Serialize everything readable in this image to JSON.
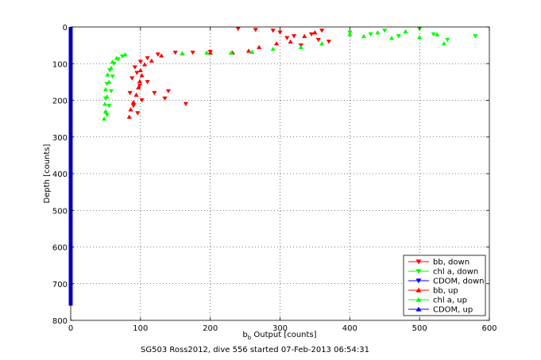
{
  "chart_data": {
    "type": "scatter",
    "xlabel_main": "b",
    "xlabel_sub": "b",
    "xlabel_rest": " Output [counts]",
    "ylabel": "Depth [counts]",
    "footer": "SG503 Ross2012, dive 556 started 07-Feb-2013 06:54:31",
    "xlim": [
      0,
      600
    ],
    "ylim": [
      0,
      800
    ],
    "y_reversed": true,
    "grid": true,
    "legend_position": "bottom-right",
    "xticks": [
      "0",
      "100",
      "200",
      "300",
      "400",
      "500",
      "600"
    ],
    "yticks": [
      "0",
      "100",
      "200",
      "300",
      "400",
      "500",
      "600",
      "700",
      "800"
    ],
    "colors": {
      "red": "#ff0000",
      "green": "#00ff00",
      "blue": "#0000ff"
    },
    "series": [
      {
        "name": "bb, down",
        "color": "#ff0000",
        "marker": "triangle-down",
        "points": [
          [
            92,
            110
          ],
          [
            95,
            125
          ],
          [
            88,
            140
          ],
          [
            99,
            160
          ],
          [
            85,
            180
          ],
          [
            102,
            200
          ],
          [
            90,
            215
          ],
          [
            96,
            235
          ],
          [
            110,
            150
          ],
          [
            120,
            180
          ],
          [
            135,
            195
          ],
          [
            140,
            175
          ],
          [
            165,
            210
          ],
          [
            100,
            95
          ],
          [
            110,
            85
          ],
          [
            125,
            75
          ],
          [
            150,
            70
          ],
          [
            175,
            70
          ],
          [
            200,
            68
          ],
          [
            240,
            5
          ],
          [
            265,
            8
          ],
          [
            290,
            10
          ],
          [
            300,
            15
          ],
          [
            310,
            30
          ],
          [
            320,
            25
          ],
          [
            330,
            50
          ],
          [
            345,
            20
          ],
          [
            355,
            35
          ],
          [
            360,
            10
          ],
          [
            370,
            40
          ]
        ]
      },
      {
        "name": "chl a, down",
        "color": "#00ff00",
        "marker": "triangle-down",
        "points": [
          [
            52,
            240
          ],
          [
            55,
            215
          ],
          [
            50,
            195
          ],
          [
            58,
            175
          ],
          [
            52,
            155
          ],
          [
            60,
            135
          ],
          [
            56,
            118
          ],
          [
            62,
            100
          ],
          [
            68,
            88
          ],
          [
            74,
            80
          ],
          [
            400,
            15
          ],
          [
            430,
            20
          ],
          [
            450,
            10
          ],
          [
            470,
            25
          ],
          [
            500,
            5
          ],
          [
            520,
            20
          ],
          [
            540,
            35
          ],
          [
            580,
            25
          ]
        ]
      },
      {
        "name": "CDOM, down",
        "color": "#0000ff",
        "marker": "triangle-down",
        "points": []
      },
      {
        "name": "bb, up",
        "color": "#ff0000",
        "marker": "triangle-up",
        "points": [
          [
            84,
            245
          ],
          [
            86,
            225
          ],
          [
            90,
            205
          ],
          [
            94,
            185
          ],
          [
            97,
            165
          ],
          [
            99,
            148
          ],
          [
            102,
            132
          ],
          [
            100,
            118
          ],
          [
            106,
            102
          ],
          [
            116,
            92
          ],
          [
            130,
            78
          ],
          [
            160,
            72
          ],
          [
            200,
            70
          ],
          [
            232,
            70
          ],
          [
            255,
            65
          ],
          [
            270,
            55
          ],
          [
            295,
            45
          ],
          [
            315,
            40
          ],
          [
            335,
            25
          ],
          [
            350,
            15
          ]
        ]
      },
      {
        "name": "chl a, up",
        "color": "#00ff00",
        "marker": "triangle-up",
        "points": [
          [
            48,
            250
          ],
          [
            50,
            230
          ],
          [
            49,
            210
          ],
          [
            52,
            190
          ],
          [
            50,
            170
          ],
          [
            55,
            150
          ],
          [
            53,
            130
          ],
          [
            58,
            112
          ],
          [
            60,
            95
          ],
          [
            66,
            85
          ],
          [
            78,
            75
          ],
          [
            160,
            72
          ],
          [
            195,
            70
          ],
          [
            230,
            70
          ],
          [
            260,
            68
          ],
          [
            290,
            60
          ],
          [
            330,
            55
          ],
          [
            360,
            45
          ],
          [
            400,
            20
          ],
          [
            420,
            25
          ],
          [
            440,
            15
          ],
          [
            460,
            30
          ],
          [
            480,
            12
          ],
          [
            500,
            28
          ],
          [
            525,
            20
          ],
          [
            535,
            45
          ]
        ]
      },
      {
        "name": "CDOM, up",
        "color": "#0000ff",
        "marker": "triangle-up",
        "points": []
      }
    ],
    "vertical_bar": {
      "x": 0,
      "y_from": 0,
      "y_to": 760,
      "color": "#0000ff"
    }
  }
}
